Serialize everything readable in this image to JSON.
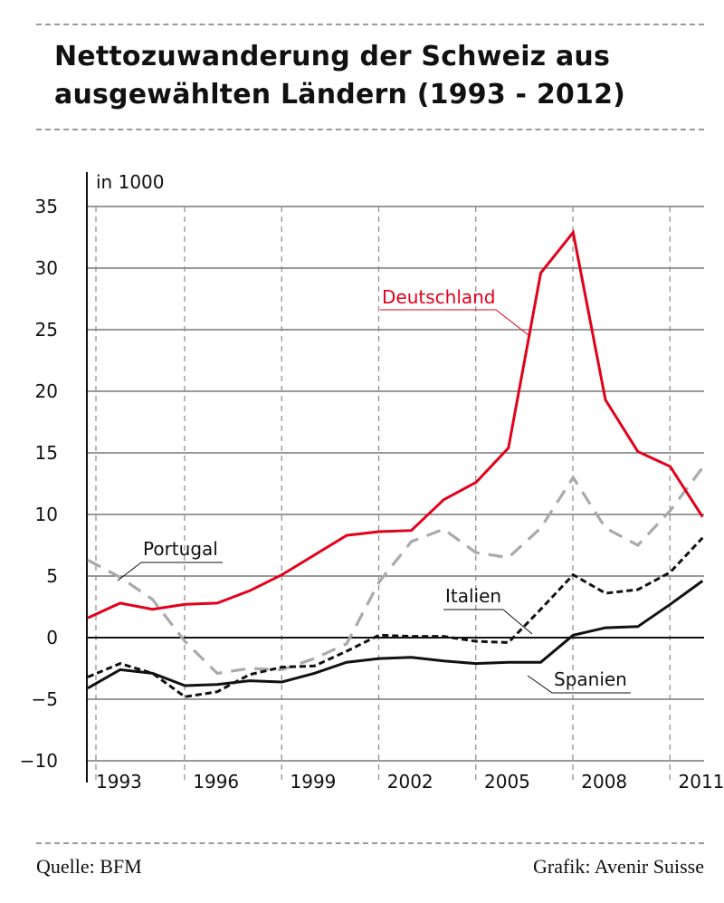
{
  "header": {
    "title": "Nettozuwanderung der Schweiz aus ausgewählten Ländern (1993 - 2012)"
  },
  "chart_data": {
    "type": "line",
    "unit_label": "in 1000",
    "x": [
      1993,
      1994,
      1995,
      1996,
      1997,
      1998,
      1999,
      2000,
      2001,
      2002,
      2003,
      2004,
      2005,
      2006,
      2007,
      2008,
      2009,
      2010,
      2011,
      2012
    ],
    "x_tick_labels": [
      "1993",
      "1996",
      "1999",
      "2002",
      "2005",
      "2008",
      "2011"
    ],
    "x_ticks": [
      1993,
      1996,
      1999,
      2002,
      2005,
      2008,
      2011
    ],
    "ylim": [
      -10,
      35
    ],
    "y_ticks": [
      -10,
      -5,
      0,
      5,
      10,
      15,
      20,
      25,
      30,
      35
    ],
    "y_tick_labels": [
      "−10",
      "−5",
      "0",
      "5",
      "10",
      "15",
      "20",
      "25",
      "30",
      "35"
    ],
    "grid": "horizontal solid, vertical dashed",
    "legend": "inline labels",
    "series": [
      {
        "name": "Deutschland",
        "color": "#e2001a",
        "style": "solid",
        "values": [
          1.6,
          2.8,
          2.3,
          2.7,
          2.8,
          3.8,
          5.1,
          6.7,
          8.3,
          8.6,
          8.7,
          11.2,
          12.6,
          15.4,
          29.6,
          32.9,
          19.3,
          15.1,
          13.9,
          9.8
        ]
      },
      {
        "name": "Portugal",
        "color": "#aaaaaa",
        "style": "dashed",
        "values": [
          6.3,
          4.9,
          3.1,
          -0.3,
          -2.9,
          -2.5,
          -2.6,
          -1.7,
          -0.5,
          4.5,
          7.8,
          8.8,
          6.9,
          6.5,
          8.9,
          13.0,
          8.9,
          7.5,
          10.3,
          13.8
        ]
      },
      {
        "name": "Italien",
        "color": "#111111",
        "style": "dotted",
        "values": [
          -3.2,
          -2.1,
          -2.9,
          -4.8,
          -4.4,
          -3.0,
          -2.4,
          -2.3,
          -1.1,
          0.2,
          0.1,
          0.1,
          -0.3,
          -0.4,
          2.3,
          5.1,
          3.6,
          3.9,
          5.3,
          8.1
        ]
      },
      {
        "name": "Spanien",
        "color": "#111111",
        "style": "solid",
        "values": [
          -4.1,
          -2.6,
          -2.9,
          -3.9,
          -3.8,
          -3.5,
          -3.6,
          -2.9,
          -2.0,
          -1.7,
          -1.6,
          -1.9,
          -2.1,
          -2.0,
          -2.0,
          0.2,
          0.8,
          0.9,
          2.7,
          4.6
        ]
      }
    ]
  },
  "footer": {
    "source": "Quelle: BFM",
    "credit": "Grafik: Avenir Suisse"
  }
}
